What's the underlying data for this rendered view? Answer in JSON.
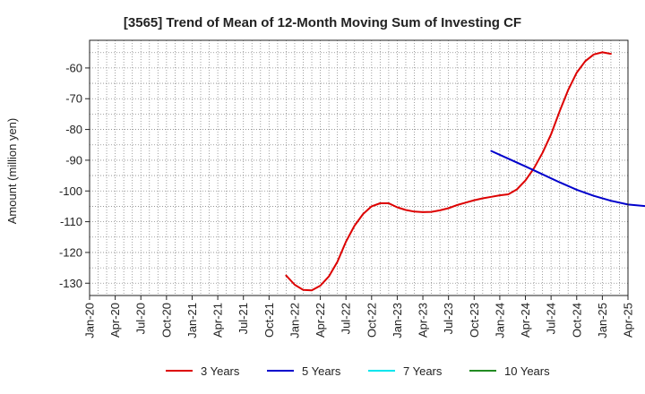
{
  "chart_data": {
    "type": "line",
    "title": "[3565]  Trend of Mean of 12-Month Moving Sum of Investing CF",
    "ylabel": "Amount (million yen)",
    "xlabel": "",
    "x_ticks": [
      "Jan-20",
      "Apr-20",
      "Jul-20",
      "Oct-20",
      "Jan-21",
      "Apr-21",
      "Jul-21",
      "Oct-21",
      "Jan-22",
      "Apr-22",
      "Jul-22",
      "Oct-22",
      "Jan-23",
      "Apr-23",
      "Jul-23",
      "Oct-23",
      "Jan-24",
      "Apr-24",
      "Jul-24",
      "Oct-24",
      "Jan-25",
      "Apr-25"
    ],
    "y_ticks": [
      -60,
      -70,
      -80,
      -90,
      -100,
      -110,
      -120,
      -130
    ],
    "ylim": [
      -134,
      -51
    ],
    "xlim": [
      "2020-01",
      "2025-04"
    ],
    "grid": true,
    "legend_position": "bottom",
    "series": [
      {
        "name": "3 Years",
        "color": "#dd0000",
        "points": [
          [
            "2021-12",
            -127.5
          ],
          [
            "2022-01",
            -130.5
          ],
          [
            "2022-02",
            -132.2
          ],
          [
            "2022-03",
            -132.3
          ],
          [
            "2022-04",
            -130.8
          ],
          [
            "2022-05",
            -127.8
          ],
          [
            "2022-06",
            -123.0
          ],
          [
            "2022-07",
            -116.5
          ],
          [
            "2022-08",
            -111.3
          ],
          [
            "2022-09",
            -107.5
          ],
          [
            "2022-10",
            -105.0
          ],
          [
            "2022-11",
            -104.0
          ],
          [
            "2022-12",
            -104.0
          ],
          [
            "2023-01",
            -105.3
          ],
          [
            "2023-02",
            -106.2
          ],
          [
            "2023-03",
            -106.7
          ],
          [
            "2023-04",
            -106.9
          ],
          [
            "2023-05",
            -106.8
          ],
          [
            "2023-06",
            -106.3
          ],
          [
            "2023-07",
            -105.6
          ],
          [
            "2023-08",
            -104.6
          ],
          [
            "2023-09",
            -103.8
          ],
          [
            "2023-10",
            -103.0
          ],
          [
            "2023-11",
            -102.4
          ],
          [
            "2023-12",
            -101.9
          ],
          [
            "2024-01",
            -101.4
          ],
          [
            "2024-02",
            -101.1
          ],
          [
            "2024-03",
            -99.5
          ],
          [
            "2024-04",
            -96.6
          ],
          [
            "2024-05",
            -92.6
          ],
          [
            "2024-06",
            -87.6
          ],
          [
            "2024-07",
            -81.6
          ],
          [
            "2024-08",
            -74.1
          ],
          [
            "2024-09",
            -67.2
          ],
          [
            "2024-10",
            -61.5
          ],
          [
            "2024-11",
            -57.8
          ],
          [
            "2024-12",
            -55.6
          ],
          [
            "2025-01",
            -54.9
          ],
          [
            "2025-02",
            -55.4
          ]
        ]
      },
      {
        "name": "5 Years",
        "color": "#0000cc",
        "points": [
          [
            "2023-12",
            -87.0
          ],
          [
            "2024-02",
            -89.5
          ],
          [
            "2024-04",
            -92.0
          ],
          [
            "2024-06",
            -94.6
          ],
          [
            "2024-08",
            -97.2
          ],
          [
            "2024-10",
            -99.6
          ],
          [
            "2024-12",
            -101.6
          ],
          [
            "2025-02",
            -103.2
          ],
          [
            "2025-04",
            -104.4
          ],
          [
            "2025-06",
            -104.9
          ]
        ]
      },
      {
        "name": "7 Years",
        "color": "#00e5ee",
        "points": []
      },
      {
        "name": "10 Years",
        "color": "#228b22",
        "points": []
      }
    ]
  }
}
